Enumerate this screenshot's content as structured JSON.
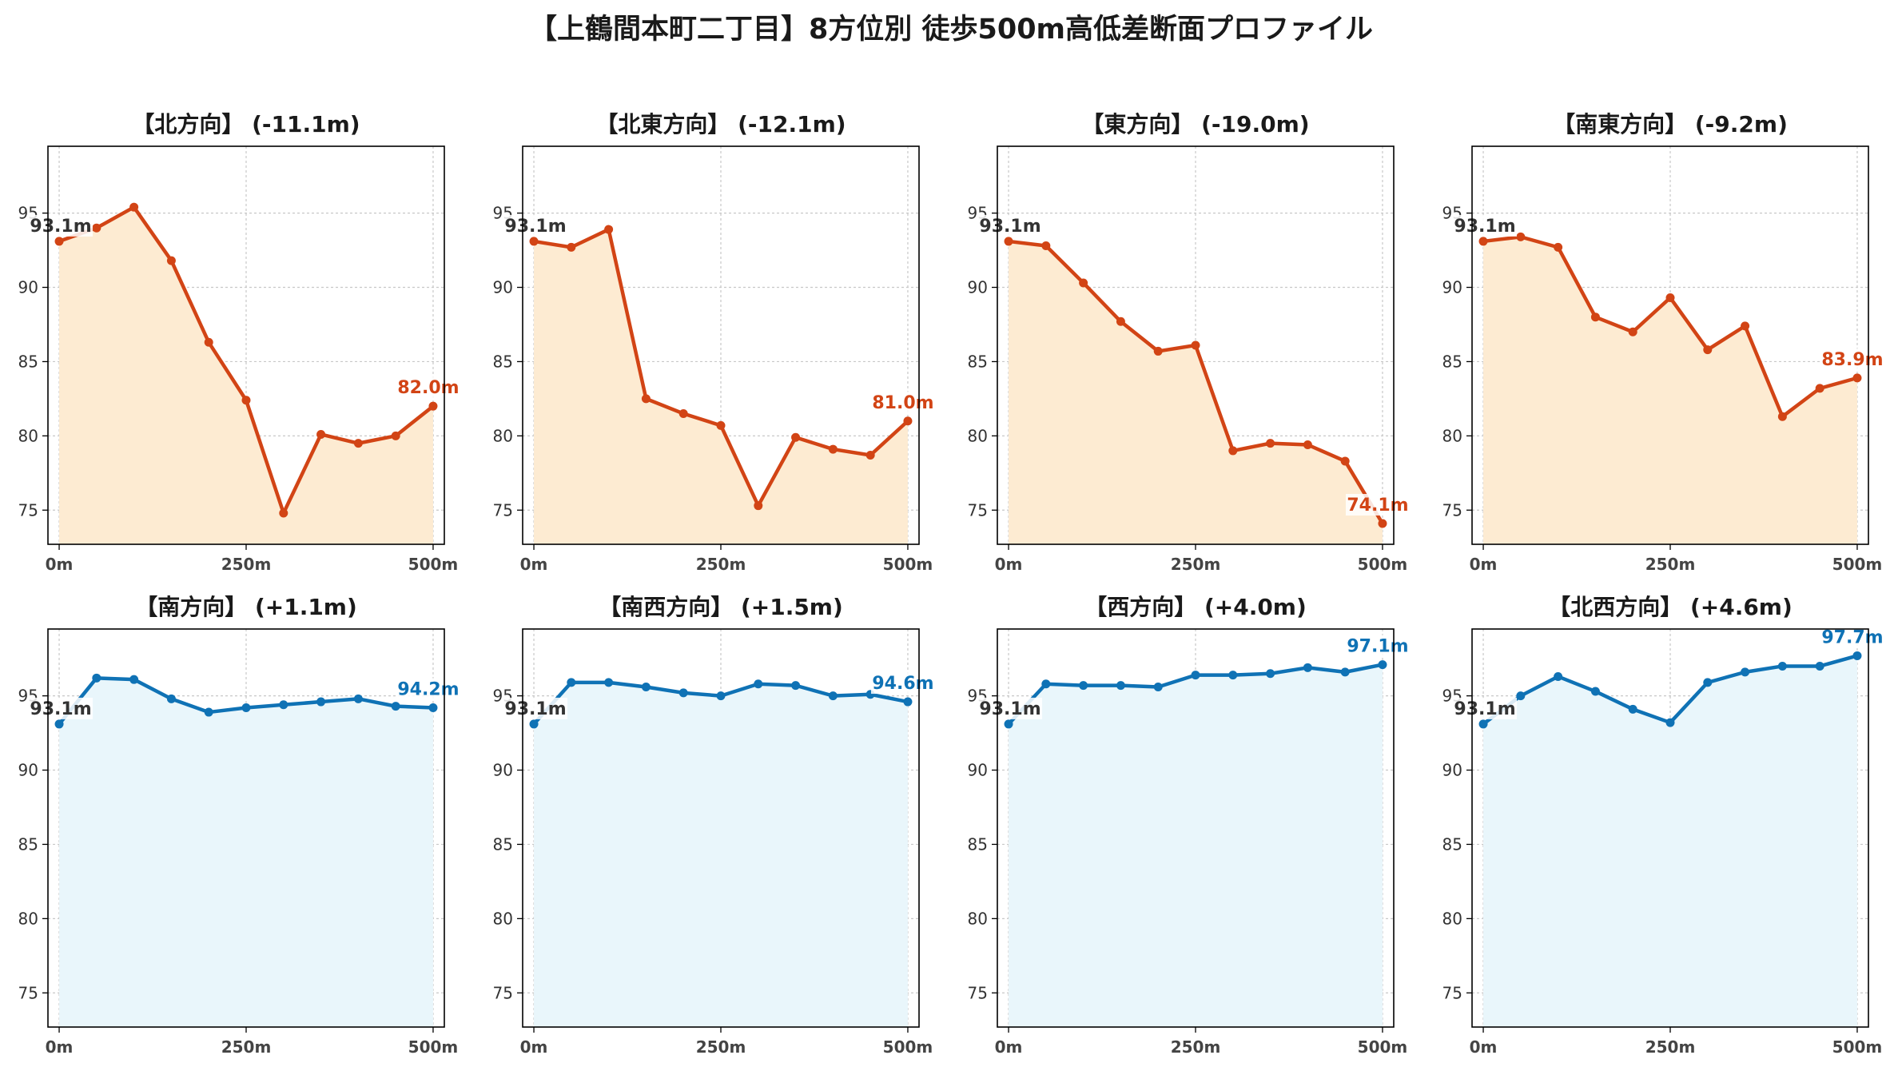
{
  "title": "【上鶴間本町二丁目】8方位別 徒歩500m高低差断面プロファイル",
  "colors": {
    "down_line": "#d24415",
    "down_fill": "#fdebd2",
    "up_line": "#0f72b5",
    "up_fill": "#e9f6fb",
    "start_label": "#333333",
    "grid": "#c8c8c8"
  },
  "chart_data": [
    {
      "type": "line",
      "title": "【北方向】 (-11.1m)",
      "trend": "down",
      "x": [
        0,
        50,
        100,
        150,
        200,
        250,
        300,
        350,
        400,
        450,
        500
      ],
      "values": [
        93.1,
        94.0,
        95.4,
        91.8,
        86.3,
        82.4,
        74.8,
        80.1,
        79.5,
        80.0,
        82.0
      ],
      "start_label": "93.1m",
      "end_label": "82.0m",
      "x_ticks": [
        "0m",
        "250m",
        "500m"
      ],
      "y_ticks": [
        "75",
        "80",
        "85",
        "90",
        "95"
      ],
      "ylim": [
        72.7,
        99.5
      ],
      "xlim": [
        -15,
        515
      ],
      "grid": true
    },
    {
      "type": "line",
      "title": "【北東方向】 (-12.1m)",
      "trend": "down",
      "x": [
        0,
        50,
        100,
        150,
        200,
        250,
        300,
        350,
        400,
        450,
        500
      ],
      "values": [
        93.1,
        92.7,
        93.9,
        82.5,
        81.5,
        80.7,
        75.3,
        79.9,
        79.1,
        78.7,
        81.0
      ],
      "start_label": "93.1m",
      "end_label": "81.0m",
      "x_ticks": [
        "0m",
        "250m",
        "500m"
      ],
      "y_ticks": [
        "75",
        "80",
        "85",
        "90",
        "95"
      ],
      "ylim": [
        72.7,
        99.5
      ],
      "xlim": [
        -15,
        515
      ],
      "grid": true
    },
    {
      "type": "line",
      "title": "【東方向】 (-19.0m)",
      "trend": "down",
      "x": [
        0,
        50,
        100,
        150,
        200,
        250,
        300,
        350,
        400,
        450,
        500
      ],
      "values": [
        93.1,
        92.8,
        90.3,
        87.7,
        85.7,
        86.1,
        79.0,
        79.5,
        79.4,
        78.3,
        74.1
      ],
      "start_label": "93.1m",
      "end_label": "74.1m",
      "x_ticks": [
        "0m",
        "250m",
        "500m"
      ],
      "y_ticks": [
        "75",
        "80",
        "85",
        "90",
        "95"
      ],
      "ylim": [
        72.7,
        99.5
      ],
      "xlim": [
        -15,
        515
      ],
      "grid": true
    },
    {
      "type": "line",
      "title": "【南東方向】 (-9.2m)",
      "trend": "down",
      "x": [
        0,
        50,
        100,
        150,
        200,
        250,
        300,
        350,
        400,
        450,
        500
      ],
      "values": [
        93.1,
        93.4,
        92.7,
        88.0,
        87.0,
        89.3,
        85.8,
        87.4,
        81.3,
        83.2,
        83.9
      ],
      "start_label": "93.1m",
      "end_label": "83.9m",
      "x_ticks": [
        "0m",
        "250m",
        "500m"
      ],
      "y_ticks": [
        "75",
        "80",
        "85",
        "90",
        "95"
      ],
      "ylim": [
        72.7,
        99.5
      ],
      "xlim": [
        -15,
        515
      ],
      "grid": true
    },
    {
      "type": "line",
      "title": "【南方向】 (+1.1m)",
      "trend": "up",
      "x": [
        0,
        50,
        100,
        150,
        200,
        250,
        300,
        350,
        400,
        450,
        500
      ],
      "values": [
        93.1,
        96.2,
        96.1,
        94.8,
        93.9,
        94.2,
        94.4,
        94.6,
        94.8,
        94.3,
        94.2
      ],
      "start_label": "93.1m",
      "end_label": "94.2m",
      "x_ticks": [
        "0m",
        "250m",
        "500m"
      ],
      "y_ticks": [
        "75",
        "80",
        "85",
        "90",
        "95"
      ],
      "ylim": [
        72.7,
        99.5
      ],
      "xlim": [
        -15,
        515
      ],
      "grid": true
    },
    {
      "type": "line",
      "title": "【南西方向】 (+1.5m)",
      "trend": "up",
      "x": [
        0,
        50,
        100,
        150,
        200,
        250,
        300,
        350,
        400,
        450,
        500
      ],
      "values": [
        93.1,
        95.9,
        95.9,
        95.6,
        95.2,
        95.0,
        95.8,
        95.7,
        95.0,
        95.1,
        94.6
      ],
      "start_label": "93.1m",
      "end_label": "94.6m",
      "x_ticks": [
        "0m",
        "250m",
        "500m"
      ],
      "y_ticks": [
        "75",
        "80",
        "85",
        "90",
        "95"
      ],
      "ylim": [
        72.7,
        99.5
      ],
      "xlim": [
        -15,
        515
      ],
      "grid": true
    },
    {
      "type": "line",
      "title": "【西方向】 (+4.0m)",
      "trend": "up",
      "x": [
        0,
        50,
        100,
        150,
        200,
        250,
        300,
        350,
        400,
        450,
        500
      ],
      "values": [
        93.1,
        95.8,
        95.7,
        95.7,
        95.6,
        96.4,
        96.4,
        96.5,
        96.9,
        96.6,
        97.1
      ],
      "start_label": "93.1m",
      "end_label": "97.1m",
      "x_ticks": [
        "0m",
        "250m",
        "500m"
      ],
      "y_ticks": [
        "75",
        "80",
        "85",
        "90",
        "95"
      ],
      "ylim": [
        72.7,
        99.5
      ],
      "xlim": [
        -15,
        515
      ],
      "grid": true
    },
    {
      "type": "line",
      "title": "【北西方向】 (+4.6m)",
      "trend": "up",
      "x": [
        0,
        50,
        100,
        150,
        200,
        250,
        300,
        350,
        400,
        450,
        500
      ],
      "values": [
        93.1,
        95.0,
        96.3,
        95.3,
        94.1,
        93.2,
        95.9,
        96.6,
        97.0,
        97.0,
        97.7
      ],
      "start_label": "93.1m",
      "end_label": "97.7m",
      "x_ticks": [
        "0m",
        "250m",
        "500m"
      ],
      "y_ticks": [
        "75",
        "80",
        "85",
        "90",
        "95"
      ],
      "ylim": [
        72.7,
        99.5
      ],
      "xlim": [
        -15,
        515
      ],
      "grid": true
    }
  ]
}
